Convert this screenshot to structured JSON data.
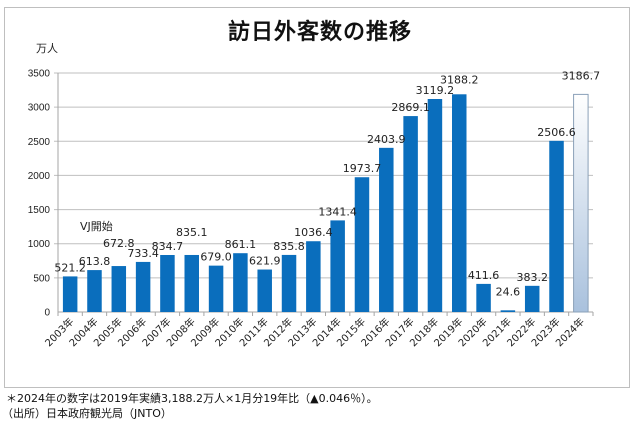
{
  "chart_data": {
    "type": "bar",
    "title": "訪日外客数の推移",
    "ylabel": "万人",
    "xlabel": "",
    "ylim": [
      0,
      3500
    ],
    "yticks": [
      0,
      500,
      1000,
      1500,
      2000,
      2500,
      3000,
      3500
    ],
    "grid": true,
    "categories": [
      "2003年",
      "2004年",
      "2005年",
      "2006年",
      "2007年",
      "2008年",
      "2009年",
      "2010年",
      "2011年",
      "2012年",
      "2013年",
      "2014年",
      "2015年",
      "2016年",
      "2017年",
      "2018年",
      "2019年",
      "2020年",
      "2021年",
      "2022年",
      "2023年",
      "2024年"
    ],
    "values": [
      521.2,
      613.8,
      672.8,
      733.4,
      834.7,
      835.1,
      679.0,
      861.1,
      621.9,
      835.8,
      1036.4,
      1341.4,
      1973.7,
      2403.9,
      2869.1,
      3119.2,
      3188.2,
      411.6,
      24.6,
      383.2,
      2506.6,
      3186.7
    ],
    "data_labels": [
      "521.2",
      "613.8",
      "672.8",
      "733.4",
      "834.7",
      "835.1",
      "679.0",
      "861.1",
      "621.9",
      "835.8",
      "1036.4",
      "1341.4",
      "1973.7",
      "2403.9",
      "2869.1",
      "3119.2",
      "3188.2",
      "411.6",
      "24.6",
      "383.2",
      "2506.6",
      "3186.7"
    ],
    "estimated_categories": [
      "2024年"
    ],
    "annotations": [
      {
        "text": "VJ開始",
        "category": "2003年"
      }
    ],
    "colors": {
      "bar": "#0a6ebd",
      "estimate_top": "#ffffff",
      "estimate_bottom": "#a9c1dd",
      "estimate_border": "#8aa0b8",
      "grid": "#bfbfbf"
    }
  },
  "footnotes": [
    "＊2024年の数字は2019年実績3,188.2万人×1月分19年比（▲0.046％）。",
    "（出所）日本政府観光局（JNTO）"
  ]
}
